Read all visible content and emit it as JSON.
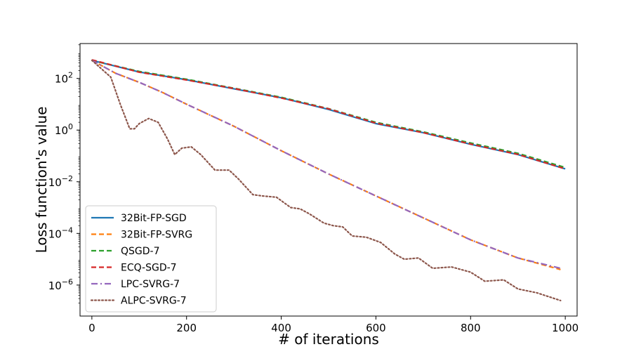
{
  "chart_data": {
    "type": "line",
    "title": "",
    "xlabel": "# of iterations",
    "ylabel": "Loss function's value",
    "xlim": [
      -25,
      1025
    ],
    "ylim_log10": [
      -7.2,
      3.35
    ],
    "yscale": "log",
    "grid": false,
    "legend_position": "lower-left",
    "x_ticks": [
      0,
      200,
      400,
      600,
      800,
      1000
    ],
    "y_ticks": [
      {
        "exp": 2,
        "base": "10",
        "power": "2"
      },
      {
        "exp": 0,
        "base": "10",
        "power": "0"
      },
      {
        "exp": -2,
        "base": "10",
        "power": "−2"
      },
      {
        "exp": -4,
        "base": "10",
        "power": "−4"
      },
      {
        "exp": -6,
        "base": "10",
        "power": "−6"
      }
    ],
    "series": [
      {
        "name": "32Bit-FP-SGD",
        "color": "#1f77b4",
        "dash": "solid",
        "x": [
          0,
          100,
          200,
          300,
          400,
          500,
          600,
          700,
          800,
          900,
          1000
        ],
        "log10_y": [
          2.7,
          2.25,
          1.95,
          1.6,
          1.25,
          0.8,
          0.25,
          -0.1,
          -0.55,
          -0.95,
          -1.5
        ]
      },
      {
        "name": "32Bit-FP-SVRG",
        "color": "#ff7f0e",
        "dash": "dashed",
        "x": [
          0,
          50,
          100,
          150,
          200,
          300,
          400,
          500,
          600,
          700,
          800,
          900,
          990
        ],
        "log10_y": [
          2.7,
          2.2,
          1.85,
          1.45,
          1.0,
          0.15,
          -0.8,
          -1.7,
          -2.55,
          -3.4,
          -4.25,
          -4.95,
          -5.4
        ]
      },
      {
        "name": "QSGD-7",
        "color": "#2ca02c",
        "dash": "dashed",
        "x": [
          0,
          100,
          200,
          300,
          400,
          500,
          600,
          700,
          800,
          900,
          1000
        ],
        "log10_y": [
          2.7,
          2.27,
          1.97,
          1.62,
          1.27,
          0.83,
          0.3,
          -0.07,
          -0.5,
          -0.9,
          -1.45
        ]
      },
      {
        "name": "ECQ-SGD-7",
        "color": "#d62728",
        "dash": "dashed",
        "x": [
          0,
          100,
          200,
          300,
          400,
          500,
          600,
          700,
          800,
          900,
          1000
        ],
        "log10_y": [
          2.72,
          2.24,
          1.94,
          1.61,
          1.24,
          0.82,
          0.27,
          -0.1,
          -0.54,
          -0.94,
          -1.5
        ]
      },
      {
        "name": "LPC-SVRG-7",
        "color": "#9467bd",
        "dash": "dashdot",
        "x": [
          0,
          50,
          100,
          150,
          200,
          300,
          400,
          500,
          600,
          700,
          800,
          900,
          990
        ],
        "log10_y": [
          2.7,
          2.2,
          1.85,
          1.45,
          1.0,
          0.15,
          -0.8,
          -1.7,
          -2.55,
          -3.4,
          -4.25,
          -4.95,
          -5.35
        ]
      },
      {
        "name": "ALPC-SVRG-7",
        "color": "#8c564b",
        "dash": "dotted",
        "x": [
          0,
          40,
          60,
          80,
          90,
          100,
          120,
          140,
          160,
          175,
          190,
          210,
          230,
          260,
          290,
          310,
          340,
          360,
          390,
          420,
          440,
          460,
          490,
          510,
          530,
          550,
          580,
          610,
          640,
          660,
          690,
          720,
          760,
          800,
          830,
          870,
          900,
          940,
          990
        ],
        "log10_y": [
          2.7,
          2.05,
          1.0,
          0.05,
          0.05,
          0.25,
          0.45,
          0.3,
          -0.35,
          -0.95,
          -0.7,
          -0.65,
          -0.95,
          -1.55,
          -1.55,
          -1.9,
          -2.5,
          -2.55,
          -2.6,
          -3.0,
          -3.05,
          -3.25,
          -3.6,
          -3.7,
          -3.75,
          -4.1,
          -4.15,
          -4.35,
          -4.8,
          -5.0,
          -4.95,
          -5.35,
          -5.3,
          -5.5,
          -5.85,
          -5.8,
          -6.15,
          -6.3,
          -6.6
        ]
      }
    ]
  }
}
